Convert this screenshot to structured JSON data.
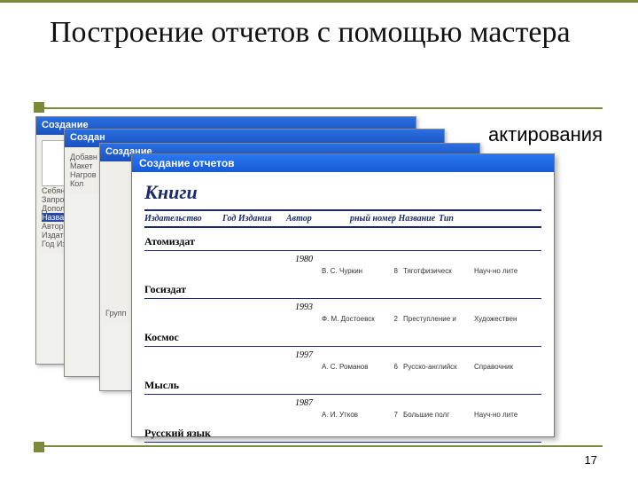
{
  "slide": {
    "title": "Построение отчетов с помощью мастера",
    "side_text": "актирования",
    "page_number": "17"
  },
  "windows": {
    "w1_title": "Создание",
    "w2_title": "Создан",
    "w3_title": "Создание",
    "report_title": "Создание отчетов",
    "w1_labels": [
      "Себяннь",
      "Запрос: К",
      "Дополнен",
      "Названи",
      "Автор",
      "Издател",
      "Год Изд"
    ],
    "w2_labels": [
      "Добавн",
      "Макет",
      "Нагров",
      "Кол"
    ],
    "w3_labels": [
      "Групп"
    ]
  },
  "report": {
    "title": "Книги",
    "columns": [
      "Издательство",
      "Год Издания",
      "Автор",
      "рный номер Название",
      "Тип"
    ],
    "groups": [
      {
        "publisher": "Атомиздат",
        "years": [
          {
            "year": "1980",
            "rows": [
              {
                "author": "В. С. Чуркин",
                "num": "8",
                "title": "Тяготфизическ",
                "genre": "Науч-но лите"
              }
            ]
          }
        ]
      },
      {
        "publisher": "Госиздат",
        "years": [
          {
            "year": "1993",
            "rows": [
              {
                "author": "Ф. М. Достоевск",
                "num": "2",
                "title": "Преступление и",
                "genre": "Художествен"
              }
            ]
          }
        ]
      },
      {
        "publisher": "Космос",
        "years": [
          {
            "year": "1997",
            "rows": [
              {
                "author": "А. С. Романов",
                "num": "6",
                "title": "Русско-английск",
                "genre": "Справочник"
              }
            ]
          }
        ]
      },
      {
        "publisher": "Мысль",
        "years": [
          {
            "year": "1987",
            "rows": [
              {
                "author": "А. И. Утков",
                "num": "7",
                "title": "Большие полг",
                "genre": "Науч-но лите"
              }
            ]
          }
        ]
      },
      {
        "publisher": "Русский язык",
        "years": []
      }
    ]
  },
  "colors": {
    "accent": "#7a8a3a",
    "win_titlebar_from": "#2a6fe0",
    "win_titlebar_to": "#1a52c0",
    "report_titlebar_from": "#2a78f0",
    "report_titlebar_to": "#185ad6",
    "report_heading": "#1a2a6a"
  }
}
